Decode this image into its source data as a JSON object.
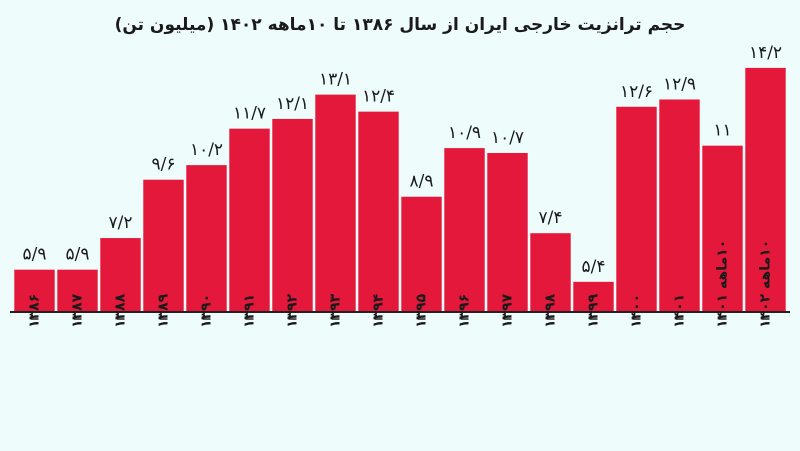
{
  "chart_data": {
    "type": "bar",
    "title": "حجم ترانزیت خارجی ایران از سال ۱۳۸۶ تا ۱۰ماهه ۱۴۰۲ (میلیون تن)",
    "categories": [
      "۱۳۸۶",
      "۱۳۸۷",
      "۱۳۸۸",
      "۱۳۸۹",
      "۱۳۹۰",
      "۱۳۹۱",
      "۱۳۹۲",
      "۱۳۹۳",
      "۱۳۹۴",
      "۱۳۹۵",
      "۱۳۹۶",
      "۱۳۹۷",
      "۱۳۹۸",
      "۱۳۹۹",
      "۱۴۰۰",
      "۱۴۰۱",
      "۱۰ماهه ۱۴۰۱",
      "۱۰ماهه ۱۴۰۲"
    ],
    "values": [
      5.9,
      5.9,
      7.2,
      9.6,
      10.2,
      11.7,
      12.1,
      13.1,
      12.4,
      8.9,
      10.9,
      10.7,
      7.4,
      5.4,
      12.6,
      12.9,
      11,
      14.2
    ],
    "value_labels": [
      "۵/۹",
      "۵/۹",
      "۷/۲",
      "۹/۶",
      "۱۰/۲",
      "۱۱/۷",
      "۱۲/۱",
      "۱۳/۱",
      "۱۲/۴",
      "۸/۹",
      "۱۰/۹",
      "۱۰/۷",
      "۷/۴",
      "۵/۴",
      "۱۲/۶",
      "۱۲/۹",
      "۱۱",
      "۱۴/۲"
    ],
    "color": "#e3183b",
    "ylim": [
      4.2,
      15.1
    ]
  }
}
